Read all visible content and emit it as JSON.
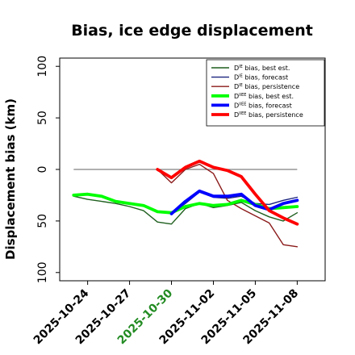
{
  "chart_data": {
    "type": "line",
    "title": "Bias, ice edge displacement",
    "xlabel": "",
    "ylabel": "Displacement bias (km)",
    "x_tick_labels": [
      {
        "label": "2025-10-24",
        "color": "#000000"
      },
      {
        "label": "2025-10-27",
        "color": "#000000"
      },
      {
        "label": "2025-10-30",
        "color": "#228b22"
      },
      {
        "label": "2025-11-02",
        "color": "#000000"
      },
      {
        "label": "2025-11-05",
        "color": "#000000"
      },
      {
        "label": "2025-11-08",
        "color": "#000000"
      }
    ],
    "y_tick_labels": [
      "100",
      "50",
      "0",
      "50",
      "100"
    ],
    "y_tick_values": [
      100,
      50,
      0,
      -50,
      -100
    ],
    "xlim": [
      "2025-10-22",
      "2025-11-10"
    ],
    "ylim": [
      -108,
      108
    ],
    "grid": false,
    "legend_position": "upper right",
    "zero_line": {
      "y": 0,
      "x_start": "2025-10-23",
      "x_end": "2025-11-08",
      "color": "#808080"
    },
    "series": [
      {
        "name": "bias, best est.",
        "name_prefix": "D",
        "name_sup": "IE",
        "color": "#1f5f1f",
        "width": 1.4,
        "points": [
          [
            "2025-10-23",
            -26
          ],
          [
            "2025-10-24",
            -29
          ],
          [
            "2025-10-25",
            -31
          ],
          [
            "2025-10-26",
            -33
          ],
          [
            "2025-10-27",
            -36
          ],
          [
            "2025-10-28",
            -40
          ],
          [
            "2025-10-29",
            -51
          ],
          [
            "2025-10-30",
            -53
          ],
          [
            "2025-10-31",
            -38
          ],
          [
            "2025-11-01",
            -33
          ],
          [
            "2025-11-02",
            -37
          ],
          [
            "2025-11-03",
            -35
          ],
          [
            "2025-11-04",
            -32
          ],
          [
            "2025-11-05",
            -40
          ],
          [
            "2025-11-06",
            -46
          ],
          [
            "2025-11-07",
            -50
          ],
          [
            "2025-11-08",
            -42
          ]
        ]
      },
      {
        "name": "bias, forecast",
        "name_prefix": "D",
        "name_sup": "IE",
        "color": "#1a237e",
        "width": 1.4,
        "points": [
          [
            "2025-10-30",
            -43
          ],
          [
            "2025-10-31",
            -33
          ],
          [
            "2025-11-01",
            -22
          ],
          [
            "2025-11-02",
            -27
          ],
          [
            "2025-11-03",
            -28
          ],
          [
            "2025-11-04",
            -26
          ],
          [
            "2025-11-05",
            -33
          ],
          [
            "2025-11-06",
            -34
          ],
          [
            "2025-11-07",
            -30
          ],
          [
            "2025-11-08",
            -27
          ]
        ]
      },
      {
        "name": "bias, persistence",
        "name_prefix": "D",
        "name_sup": "IE",
        "color": "#8b1a1a",
        "width": 1.4,
        "points": [
          [
            "2025-10-29",
            0
          ],
          [
            "2025-10-30",
            -13
          ],
          [
            "2025-10-31",
            0
          ],
          [
            "2025-11-01",
            5
          ],
          [
            "2025-11-02",
            -4
          ],
          [
            "2025-11-03",
            -30
          ],
          [
            "2025-11-04",
            -38
          ],
          [
            "2025-11-05",
            -45
          ],
          [
            "2025-11-06",
            -52
          ],
          [
            "2025-11-07",
            -73
          ],
          [
            "2025-11-08",
            -75
          ]
        ]
      },
      {
        "name": "bias, best est.",
        "name_prefix": "D",
        "name_sup": "IIEE",
        "color": "#00ff00",
        "width": 3.8,
        "points": [
          [
            "2025-10-23",
            -25
          ],
          [
            "2025-10-24",
            -24
          ],
          [
            "2025-10-25",
            -26
          ],
          [
            "2025-10-26",
            -31
          ],
          [
            "2025-10-27",
            -33
          ],
          [
            "2025-10-28",
            -35
          ],
          [
            "2025-10-29",
            -41
          ],
          [
            "2025-10-30",
            -42
          ],
          [
            "2025-10-31",
            -36
          ],
          [
            "2025-11-01",
            -33
          ],
          [
            "2025-11-02",
            -35
          ],
          [
            "2025-11-03",
            -34
          ],
          [
            "2025-11-04",
            -30
          ],
          [
            "2025-11-05",
            -34
          ],
          [
            "2025-11-06",
            -38
          ],
          [
            "2025-11-07",
            -37
          ],
          [
            "2025-11-08",
            -36
          ]
        ]
      },
      {
        "name": "bias, forecast",
        "name_prefix": "D",
        "name_sup": "IIEE",
        "color": "#0000ff",
        "width": 3.8,
        "points": [
          [
            "2025-10-30",
            -43
          ],
          [
            "2025-10-31",
            -31
          ],
          [
            "2025-11-01",
            -21
          ],
          [
            "2025-11-02",
            -26
          ],
          [
            "2025-11-03",
            -26
          ],
          [
            "2025-11-04",
            -24
          ],
          [
            "2025-11-05",
            -35
          ],
          [
            "2025-11-06",
            -39
          ],
          [
            "2025-11-07",
            -33
          ],
          [
            "2025-11-08",
            -30
          ]
        ]
      },
      {
        "name": "bias, persistence",
        "name_prefix": "D",
        "name_sup": "IIEE",
        "color": "#ff0000",
        "width": 3.8,
        "points": [
          [
            "2025-10-29",
            0
          ],
          [
            "2025-10-30",
            -8
          ],
          [
            "2025-10-31",
            2
          ],
          [
            "2025-11-01",
            8
          ],
          [
            "2025-11-02",
            2
          ],
          [
            "2025-11-03",
            -1
          ],
          [
            "2025-11-04",
            -7
          ],
          [
            "2025-11-05",
            -24
          ],
          [
            "2025-11-06",
            -40
          ],
          [
            "2025-11-07",
            -47
          ],
          [
            "2025-11-08",
            -53
          ]
        ]
      }
    ]
  }
}
